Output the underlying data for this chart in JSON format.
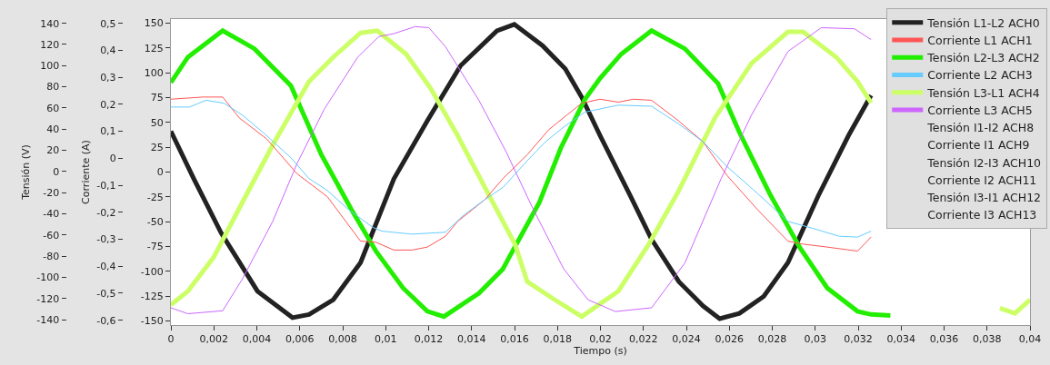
{
  "chart_data": {
    "type": "line",
    "xlabel": "Tiempo (s)",
    "y2label": "Tensión (V)",
    "y3label": "Corriente (A)",
    "xlim": [
      0,
      0.04
    ],
    "xticks": [
      0,
      {
        "value": 0.002,
        "label": "0,002"
      },
      {
        "value": 0.004,
        "label": "0,004"
      },
      {
        "value": 0.006,
        "label": "0,006"
      },
      {
        "value": 0.008,
        "label": "0,008"
      },
      {
        "value": 0.01,
        "label": "0,01"
      },
      {
        "value": 0.012,
        "label": "0,012"
      },
      {
        "value": 0.014,
        "label": "0,014"
      },
      {
        "value": 0.016,
        "label": "0,016"
      },
      {
        "value": 0.018,
        "label": "0,018"
      },
      {
        "value": 0.02,
        "label": "0,02"
      },
      {
        "value": 0.022,
        "label": "0,022"
      },
      {
        "value": 0.024,
        "label": "0,024"
      },
      {
        "value": 0.026,
        "label": "0,026"
      },
      {
        "value": 0.028,
        "label": "0,028"
      },
      {
        "value": 0.03,
        "label": "0,03"
      },
      {
        "value": 0.032,
        "label": "0,032"
      },
      {
        "value": 0.034,
        "label": "0,034"
      },
      {
        "value": 0.036,
        "label": "0,036"
      },
      {
        "value": 0.038,
        "label": "0,038"
      },
      {
        "value": 0.04,
        "label": "0,04"
      }
    ],
    "ylim": [
      -154,
      154
    ],
    "yticks": [
      -150,
      -125,
      -100,
      -75,
      -50,
      -25,
      0,
      25,
      50,
      75,
      100,
      125,
      150
    ],
    "y2lim": [
      -145,
      144
    ],
    "y2ticks": [
      -140,
      -120,
      -100,
      -80,
      -60,
      -40,
      -20,
      0,
      20,
      40,
      60,
      80,
      100,
      120,
      140
    ],
    "y3lim": [
      -0.618,
      0.516
    ],
    "y3ticks": [
      {
        "value": -0.6,
        "label": "-0,6"
      },
      {
        "value": -0.5,
        "label": "-0,5"
      },
      {
        "value": -0.4,
        "label": "-0,4"
      },
      {
        "value": -0.3,
        "label": "-0,3"
      },
      {
        "value": -0.2,
        "label": "-0,2"
      },
      {
        "value": -0.1,
        "label": "-0,1"
      },
      0,
      {
        "value": 0.1,
        "label": "0,1"
      },
      {
        "value": 0.2,
        "label": "0,2"
      },
      {
        "value": 0.3,
        "label": "0,3"
      },
      {
        "value": 0.4,
        "label": "0,4"
      },
      {
        "value": 0.5,
        "label": "0,5"
      }
    ],
    "legend": "top right",
    "series": [
      {
        "name": "Tensión L1-L2 ACH0",
        "color": "#222222",
        "axis": "y2",
        "x": [
          0,
          0.00107,
          0.00234,
          0.00403,
          0.00566,
          0.00643,
          0.00756,
          0.00883,
          0.01038,
          0.01194,
          0.01349,
          0.01518,
          0.01599,
          0.0173,
          0.01836,
          0.01913,
          0.01998,
          0.02139,
          0.02238,
          0.02365,
          0.02478,
          0.02555,
          0.02647,
          0.0276,
          0.02873,
          0.03014,
          0.03155,
          0.0326
        ],
        "values": [
          38,
          -7,
          -58,
          -113,
          -138,
          -135,
          -121,
          -86,
          -7,
          48,
          100,
          133,
          139,
          119,
          97,
          70,
          34,
          -23,
          -64,
          -104,
          -127,
          -139,
          -134,
          -118,
          -86,
          -23,
          34,
          72
        ]
      },
      {
        "name": "Corriente L1 ACH1",
        "color": "#ff5555",
        "axis": "y3",
        "x": [
          0,
          0.00149,
          0.00241,
          0.00319,
          0.00446,
          0.00587,
          0.00728,
          0.00883,
          0.00954,
          0.01038,
          0.01123,
          0.01194,
          0.01278,
          0.01335,
          0.01462,
          0.01546,
          0.01659,
          0.01758,
          0.01843,
          0.01913,
          0.01998,
          0.02083,
          0.02153,
          0.02238,
          0.02365,
          0.02478,
          0.0259,
          0.02731,
          0.02873,
          0.02943,
          0.03056,
          0.03197,
          0.0326
        ],
        "values": [
          0.219,
          0.227,
          0.227,
          0.149,
          0.072,
          -0.057,
          -0.142,
          -0.307,
          -0.311,
          -0.34,
          -0.34,
          -0.329,
          -0.289,
          -0.234,
          -0.153,
          -0.075,
          0.013,
          0.105,
          0.16,
          0.204,
          0.219,
          0.208,
          0.219,
          0.215,
          0.138,
          0.061,
          -0.064,
          -0.19,
          -0.307,
          -0.318,
          -0.329,
          -0.344,
          -0.292
        ]
      },
      {
        "name": "Tensión L2-L3 ACH2",
        "color": "#22ee00",
        "axis": "y2",
        "x": [
          0,
          0.00079,
          0.00241,
          0.00389,
          0.00559,
          0.007,
          0.00841,
          0.00954,
          0.01081,
          0.01194,
          0.01271,
          0.01434,
          0.01546,
          0.01575,
          0.01716,
          0.01815,
          0.01927,
          0.01998,
          0.02097,
          0.02238,
          0.02393,
          0.02548,
          0.02647,
          0.02788,
          0.02929,
          0.03056,
          0.03197,
          0.0326,
          0.0335
        ],
        "values": [
          84,
          108,
          133,
          116,
          81,
          16,
          -36,
          -75,
          -110,
          -132,
          -137,
          -115,
          -92,
          -81,
          -29,
          22,
          68,
          88,
          111,
          133,
          116,
          83,
          37,
          -21,
          -72,
          -110,
          -132,
          -135,
          -136
        ]
      },
      {
        "name": "Corriente L2 ACH3",
        "color": "#66ccff",
        "axis": "y3",
        "x": [
          0,
          0.00086,
          0.00164,
          0.00248,
          0.00333,
          0.00432,
          0.00559,
          0.00643,
          0.00728,
          0.00827,
          0.0094,
          0.00982,
          0.01123,
          0.01278,
          0.01363,
          0.01462,
          0.01546,
          0.01659,
          0.01744,
          0.01829,
          0.01927,
          0.02083,
          0.02238,
          0.02365,
          0.02478,
          0.0259,
          0.02731,
          0.02873,
          0.02986,
          0.03112,
          0.03197,
          0.0326
        ],
        "values": [
          0.19,
          0.19,
          0.215,
          0.204,
          0.16,
          0.094,
          0.002,
          -0.075,
          -0.119,
          -0.19,
          -0.256,
          -0.27,
          -0.281,
          -0.274,
          -0.211,
          -0.153,
          -0.108,
          -0.009,
          0.061,
          0.116,
          0.171,
          0.197,
          0.193,
          0.127,
          0.061,
          -0.031,
          -0.13,
          -0.234,
          -0.259,
          -0.289,
          -0.292,
          -0.27
        ]
      },
      {
        "name": "Tensión L3-L1 ACH4",
        "color": "#ccff66",
        "axis": "y2",
        "x": [
          0,
          0.00079,
          0.00199,
          0.00333,
          0.00474,
          0.00643,
          0.00756,
          0.00883,
          0.00961,
          0.01095,
          0.01208,
          0.01335,
          0.01462,
          0.01603,
          0.01659,
          0.01786,
          0.01913,
          0.02083,
          0.02224,
          0.02365,
          0.02534,
          0.02703,
          0.02873,
          0.02943,
          0.03098,
          0.03197,
          0.0326,
          0.035,
          0.0386,
          0.0393,
          0.04
        ],
        "values": [
          -126,
          -113,
          -81,
          -29,
          25,
          85,
          108,
          131,
          133,
          111,
          79,
          34,
          -15,
          -69,
          -104,
          -121,
          -137,
          -113,
          -69,
          -18,
          51,
          102,
          132,
          132,
          108,
          85,
          65,
          null,
          -129,
          -134,
          -121
        ]
      },
      {
        "name": "Corriente L3 ACH5",
        "color": "#cc66ff",
        "axis": "y3",
        "x": [
          0,
          0.00079,
          0.00241,
          0.00333,
          0.00474,
          0.00587,
          0.00714,
          0.00869,
          0.00968,
          0.01038,
          0.01137,
          0.01201,
          0.01278,
          0.01434,
          0.01561,
          0.01659,
          0.01688,
          0.01829,
          0.01942,
          0.02069,
          0.02238,
          0.02393,
          0.02562,
          0.02703,
          0.02873,
          0.03028,
          0.03183,
          0.0326
        ],
        "values": [
          -0.554,
          -0.576,
          -0.565,
          -0.447,
          -0.234,
          -0.02,
          0.182,
          0.374,
          0.451,
          0.462,
          0.488,
          0.484,
          0.414,
          0.215,
          0.024,
          -0.142,
          -0.19,
          -0.41,
          -0.524,
          -0.568,
          -0.554,
          -0.388,
          -0.075,
          0.16,
          0.396,
          0.484,
          0.48,
          0.44
        ]
      },
      {
        "name": "Tensión I1-I2 ACH8"
      },
      {
        "name": "Corriente I1 ACH9"
      },
      {
        "name": "Tensión I2-I3 ACH10"
      },
      {
        "name": "Corriente I2 ACH11"
      },
      {
        "name": "Tensión I3-I1 ACH12"
      },
      {
        "name": "Corriente I3 ACH13"
      }
    ]
  }
}
